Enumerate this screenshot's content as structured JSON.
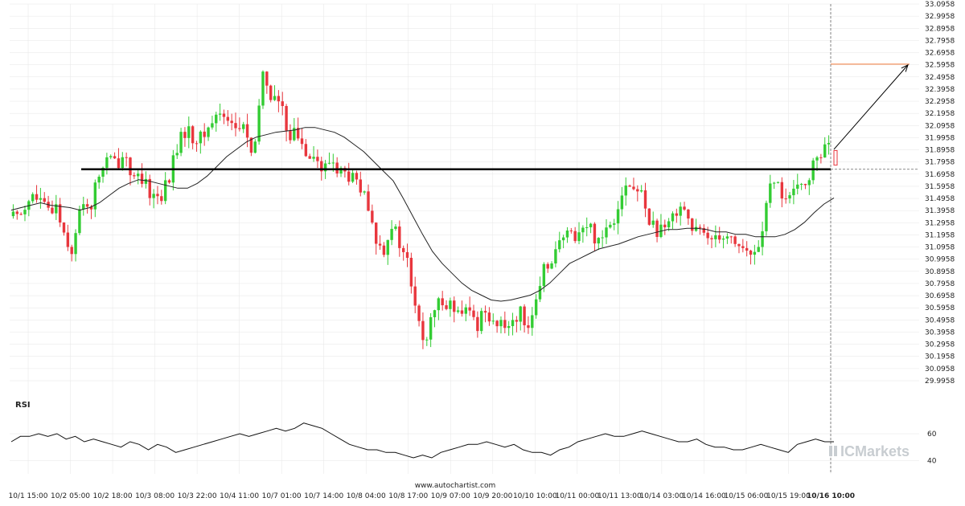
{
  "chart_data": {
    "type": "candlestick",
    "title": "",
    "price_axis": {
      "min": 29.9958,
      "max": 33.0958,
      "step": 0.1,
      "labels": [
        "33.0958",
        "32.9958",
        "32.8958",
        "32.7958",
        "32.6958",
        "32.5958",
        "32.4958",
        "32.3958",
        "32.2958",
        "32.1958",
        "32.0958",
        "31.9958",
        "31.8958",
        "31.7958",
        "31.6958",
        "31.5958",
        "31.4958",
        "31.3958",
        "31.2958",
        "31.1958",
        "31.0958",
        "30.9958",
        "30.8958",
        "30.7958",
        "30.6958",
        "30.5958",
        "30.4958",
        "30.3958",
        "30.2958",
        "30.1958",
        "30.0958",
        "29.9958"
      ]
    },
    "x_tick_labels": [
      "10/1 15:00",
      "10/2 05:00",
      "10/2 18:00",
      "10/3 08:00",
      "10/3 22:00",
      "10/4 11:00",
      "10/7 01:00",
      "10/7 14:00",
      "10/8 04:00",
      "10/8 17:00",
      "10/9 07:00",
      "10/9 20:00",
      "10/10 10:00",
      "10/11 00:00",
      "10/11 13:00",
      "10/14 03:00",
      "10/14 16:00",
      "10/15 06:00",
      "10/15 19:00",
      "10/16 10:00"
    ],
    "x_tick_bold": "10/16 10:00",
    "price_path": [
      31.35,
      31.4,
      31.52,
      31.48,
      31.38,
      31.45,
      31.2,
      31.05,
      31.5,
      31.42,
      31.7,
      31.82,
      31.78,
      31.88,
      31.65,
      31.62,
      31.55,
      31.5,
      31.62,
      31.9,
      32.05,
      32.0,
      31.98,
      32.12,
      32.2,
      32.18,
      32.05,
      32.1,
      31.75,
      32.55,
      32.35,
      32.28,
      32.05,
      32.02,
      31.9,
      31.88,
      31.7,
      31.82,
      31.72,
      31.68,
      31.62,
      31.48,
      31.2,
      31.05,
      31.3,
      31.12,
      30.95,
      30.5,
      30.3,
      30.55,
      30.68,
      30.62,
      30.5,
      30.58,
      30.45,
      30.6,
      30.48,
      30.42,
      30.5,
      30.55,
      30.48,
      30.62,
      30.95,
      31.05,
      31.15,
      31.2,
      31.22,
      31.28,
      31.15,
      31.25,
      31.35,
      31.6,
      31.58,
      31.55,
      31.35,
      31.22,
      31.2,
      31.4,
      31.48,
      31.25,
      31.2,
      31.18,
      31.22,
      31.2,
      31.15,
      31.08,
      31.0,
      31.15,
      31.55,
      31.6,
      31.5,
      31.52,
      31.62,
      31.72,
      31.88,
      31.92
    ],
    "moving_average": [
      31.4,
      31.42,
      31.44,
      31.46,
      31.44,
      31.43,
      31.42,
      31.4,
      31.42,
      31.46,
      31.52,
      31.58,
      31.62,
      31.65,
      31.64,
      31.62,
      31.6,
      31.58,
      31.58,
      31.62,
      31.68,
      31.76,
      31.84,
      31.9,
      31.96,
      32.0,
      32.02,
      32.04,
      32.05,
      32.06,
      32.08,
      32.08,
      32.06,
      32.04,
      32.0,
      31.94,
      31.88,
      31.8,
      31.72,
      31.64,
      31.5,
      31.35,
      31.2,
      31.06,
      30.96,
      30.88,
      30.8,
      30.74,
      30.7,
      30.66,
      30.65,
      30.66,
      30.68,
      30.7,
      30.74,
      30.8,
      30.88,
      30.96,
      31.0,
      31.04,
      31.08,
      31.1,
      31.12,
      31.15,
      31.18,
      31.2,
      31.22,
      31.24,
      31.24,
      31.25,
      31.25,
      31.24,
      31.22,
      31.22,
      31.2,
      31.2,
      31.18,
      31.18,
      31.18,
      31.2,
      31.24,
      31.3,
      31.38,
      31.45,
      31.5
    ],
    "support_resistance_level": 31.7358,
    "breakout_time_label": "10/16 10:00",
    "target_level": 32.6008,
    "rsi": {
      "label": "RSI",
      "ylim": [
        30,
        75
      ],
      "tick_labels": [
        "60",
        "40"
      ],
      "tick_values": [
        60,
        40
      ],
      "values": [
        54,
        58,
        58,
        60,
        58,
        60,
        56,
        58,
        54,
        56,
        54,
        52,
        50,
        54,
        52,
        48,
        52,
        50,
        46,
        48,
        50,
        52,
        54,
        56,
        58,
        60,
        58,
        60,
        62,
        64,
        62,
        64,
        68,
        66,
        64,
        60,
        56,
        52,
        50,
        48,
        48,
        46,
        46,
        44,
        42,
        44,
        42,
        46,
        48,
        50,
        52,
        52,
        54,
        52,
        50,
        52,
        48,
        46,
        46,
        44,
        48,
        50,
        54,
        56,
        58,
        60,
        58,
        58,
        60,
        62,
        60,
        58,
        56,
        54,
        54,
        56,
        52,
        50,
        50,
        48,
        48,
        50,
        52,
        50,
        48,
        46,
        52,
        54,
        56,
        54,
        54
      ]
    },
    "colors": {
      "up": "#33cc33",
      "down": "#e8363d",
      "level": "#000000",
      "target": "#f47c3c",
      "moving_average": "#222222",
      "grid": "#e6e6e6"
    }
  },
  "source_text": "www.autochartist.com",
  "brand": {
    "name": "ICMarkets"
  }
}
